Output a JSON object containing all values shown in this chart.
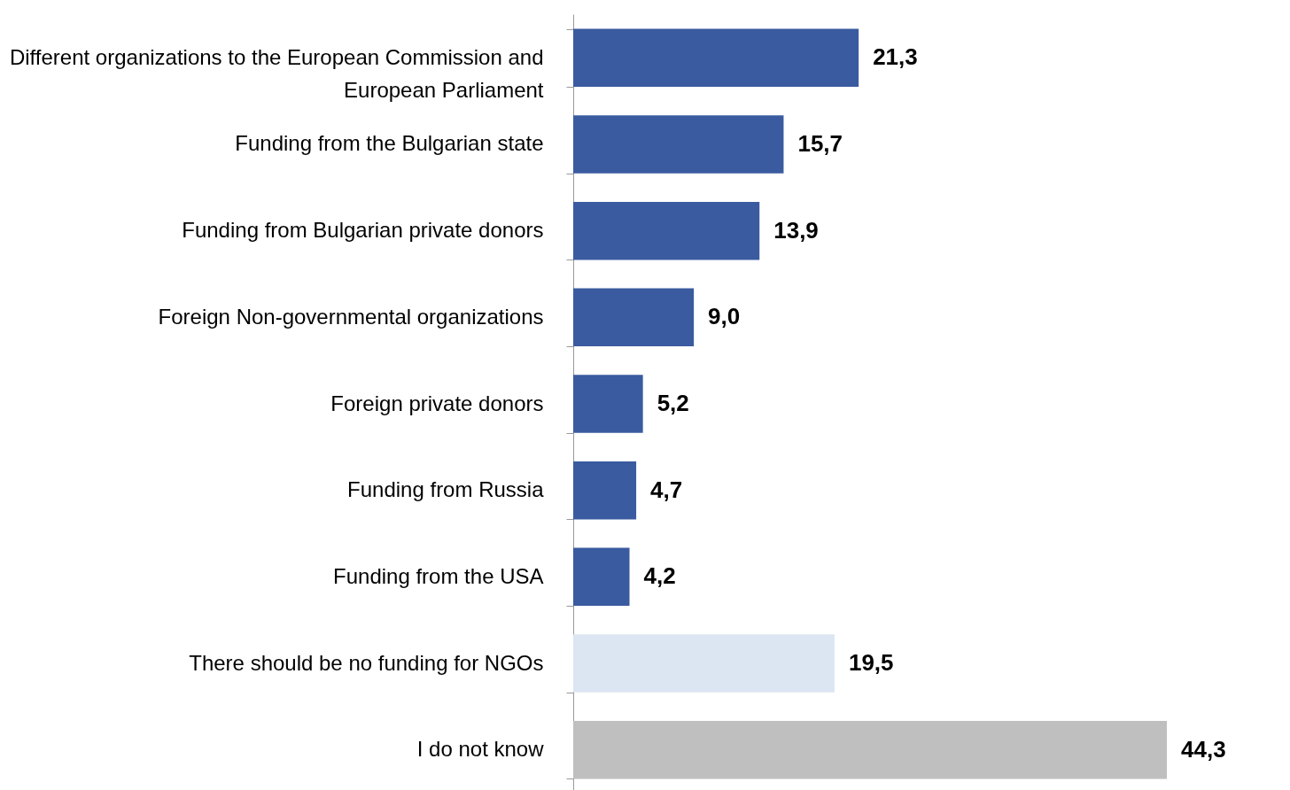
{
  "chart_data": {
    "type": "bar",
    "orientation": "horizontal",
    "categories": [
      "Different organizations to the European Commission and European Parliament",
      "Funding from the Bulgarian state",
      "Funding from Bulgarian private donors",
      "Foreign Non-governmental organizations",
      "Foreign private donors",
      "Funding from Russia",
      "Funding from the USA",
      "There should be no funding for NGOs",
      "I do not know"
    ],
    "values": [
      21.3,
      15.7,
      13.9,
      9.0,
      5.2,
      4.7,
      4.2,
      19.5,
      44.3
    ],
    "colors": [
      "#3a5ba0",
      "#3a5ba0",
      "#3a5ba0",
      "#3a5ba0",
      "#3a5ba0",
      "#3a5ba0",
      "#3a5ba0",
      "#dce6f2",
      "#bfbfbf"
    ],
    "value_labels": [
      "21,3",
      "15,7",
      "13,9",
      "9,0",
      "5,2",
      "4,7",
      "4,2",
      "19,5",
      "44,3"
    ],
    "grid": false,
    "legend": false
  }
}
